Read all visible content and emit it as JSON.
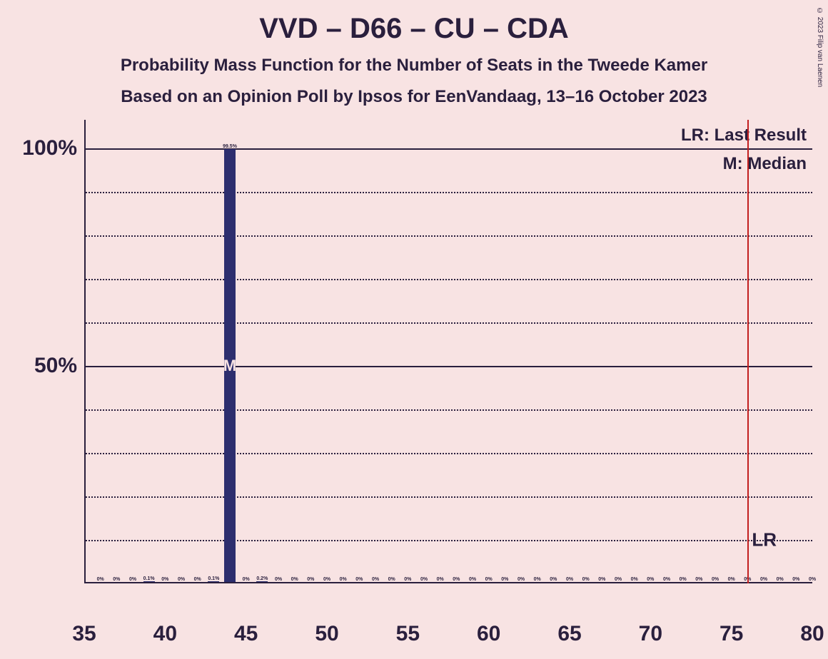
{
  "title": "VVD – D66 – CU – CDA",
  "subtitle1": "Probability Mass Function for the Number of Seats in the Tweede Kamer",
  "subtitle2": "Based on an Opinion Poll by Ipsos for EenVandaag, 13–16 October 2023",
  "copyright": "© 2023 Filip van Laenen",
  "legend": {
    "lr": "LR: Last Result",
    "m": "M: Median"
  },
  "lr_text": "LR",
  "chart": {
    "type": "bar",
    "background_color": "#f8e3e3",
    "bar_color": "#2d2e6e",
    "axis_color": "#2a1f3d",
    "lr_line_color": "#c21f1f",
    "xlim": [
      35,
      80
    ],
    "ylim": [
      0,
      100
    ],
    "x_ticks": [
      35,
      40,
      45,
      50,
      55,
      60,
      65,
      70,
      75,
      80
    ],
    "y_major_ticks": [
      50,
      100
    ],
    "y_minor_ticks": [
      10,
      20,
      30,
      40,
      60,
      70,
      80,
      90
    ],
    "title_fontsize": 40,
    "subtitle_fontsize": 24,
    "axis_label_fontsize": 30,
    "bar_label_fontsize": 7,
    "median_seat": 44,
    "last_result_seat": 76,
    "bars": [
      {
        "x": 36,
        "pct": 0,
        "label": "0%"
      },
      {
        "x": 37,
        "pct": 0,
        "label": "0%"
      },
      {
        "x": 38,
        "pct": 0,
        "label": "0%"
      },
      {
        "x": 39,
        "pct": 0.1,
        "label": "0.1%"
      },
      {
        "x": 40,
        "pct": 0,
        "label": "0%"
      },
      {
        "x": 41,
        "pct": 0,
        "label": "0%"
      },
      {
        "x": 42,
        "pct": 0,
        "label": "0%"
      },
      {
        "x": 43,
        "pct": 0.1,
        "label": "0.1%"
      },
      {
        "x": 44,
        "pct": 99.5,
        "label": "99.5%"
      },
      {
        "x": 45,
        "pct": 0,
        "label": "0%"
      },
      {
        "x": 46,
        "pct": 0.2,
        "label": "0.2%"
      },
      {
        "x": 47,
        "pct": 0,
        "label": "0%"
      },
      {
        "x": 48,
        "pct": 0,
        "label": "0%"
      },
      {
        "x": 49,
        "pct": 0,
        "label": "0%"
      },
      {
        "x": 50,
        "pct": 0,
        "label": "0%"
      },
      {
        "x": 51,
        "pct": 0,
        "label": "0%"
      },
      {
        "x": 52,
        "pct": 0,
        "label": "0%"
      },
      {
        "x": 53,
        "pct": 0,
        "label": "0%"
      },
      {
        "x": 54,
        "pct": 0,
        "label": "0%"
      },
      {
        "x": 55,
        "pct": 0,
        "label": "0%"
      },
      {
        "x": 56,
        "pct": 0,
        "label": "0%"
      },
      {
        "x": 57,
        "pct": 0,
        "label": "0%"
      },
      {
        "x": 58,
        "pct": 0,
        "label": "0%"
      },
      {
        "x": 59,
        "pct": 0,
        "label": "0%"
      },
      {
        "x": 60,
        "pct": 0,
        "label": "0%"
      },
      {
        "x": 61,
        "pct": 0,
        "label": "0%"
      },
      {
        "x": 62,
        "pct": 0,
        "label": "0%"
      },
      {
        "x": 63,
        "pct": 0,
        "label": "0%"
      },
      {
        "x": 64,
        "pct": 0,
        "label": "0%"
      },
      {
        "x": 65,
        "pct": 0,
        "label": "0%"
      },
      {
        "x": 66,
        "pct": 0,
        "label": "0%"
      },
      {
        "x": 67,
        "pct": 0,
        "label": "0%"
      },
      {
        "x": 68,
        "pct": 0,
        "label": "0%"
      },
      {
        "x": 69,
        "pct": 0,
        "label": "0%"
      },
      {
        "x": 70,
        "pct": 0,
        "label": "0%"
      },
      {
        "x": 71,
        "pct": 0,
        "label": "0%"
      },
      {
        "x": 72,
        "pct": 0,
        "label": "0%"
      },
      {
        "x": 73,
        "pct": 0,
        "label": "0%"
      },
      {
        "x": 74,
        "pct": 0,
        "label": "0%"
      },
      {
        "x": 75,
        "pct": 0,
        "label": "0%"
      },
      {
        "x": 76,
        "pct": 0,
        "label": "0%"
      },
      {
        "x": 77,
        "pct": 0,
        "label": "0%"
      },
      {
        "x": 78,
        "pct": 0,
        "label": "0%"
      },
      {
        "x": 79,
        "pct": 0,
        "label": "0%"
      },
      {
        "x": 80,
        "pct": 0,
        "label": "0%"
      }
    ]
  }
}
